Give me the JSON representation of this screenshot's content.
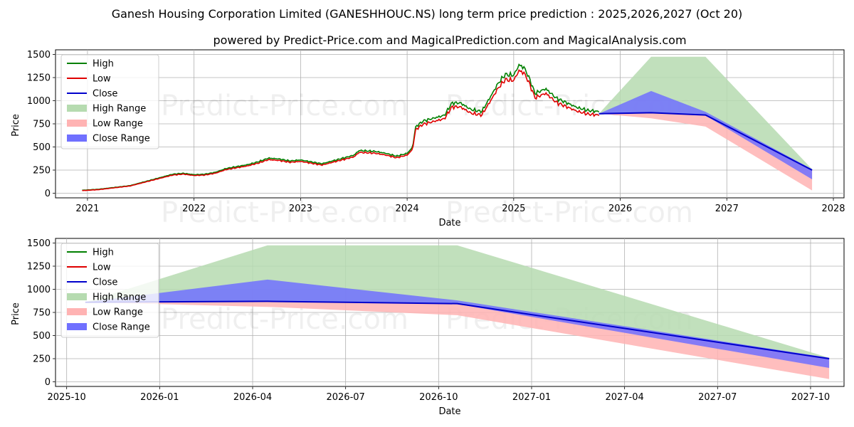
{
  "titles": {
    "main": "Ganesh Housing Corporation Limited (GANESHHOUC.NS) long term price prediction : 2025,2026,2027 (Oct 20)",
    "sub": "powered by Predict-Price.com and MagicalPrediction.com and MagicalAnalysis.com"
  },
  "watermark": "Predict-Price.com",
  "colors": {
    "high": "#008000",
    "low": "#e00000",
    "close": "#0000cc",
    "high_range": "#b6dbb0",
    "low_range": "#ffb3b3",
    "close_range": "#7070ff"
  },
  "legend": [
    "High",
    "Low",
    "Close",
    "High Range",
    "Low Range",
    "Close Range"
  ],
  "chart_data": [
    {
      "type": "line",
      "title": "",
      "xlabel": "Date",
      "ylabel": "Price",
      "xlim": [
        2020.7,
        2028.1
      ],
      "ylim": [
        -50,
        1550
      ],
      "x_ticks": [
        2021,
        2022,
        2023,
        2024,
        2025,
        2026,
        2027,
        2028
      ],
      "x_tick_labels": [
        "2021",
        "2022",
        "2023",
        "2024",
        "2025",
        "2026",
        "2027",
        "2028"
      ],
      "y_ticks": [
        0,
        250,
        500,
        750,
        1000,
        1250,
        1500
      ],
      "y_tick_labels": [
        "0",
        "250",
        "500",
        "750",
        "1000",
        "1250",
        "1500"
      ],
      "grid": true,
      "legend_position": "upper-left",
      "history": {
        "x": [
          2020.95,
          2021.1,
          2021.25,
          2021.4,
          2021.5,
          2021.6,
          2021.7,
          2021.8,
          2021.9,
          2022.0,
          2022.1,
          2022.2,
          2022.3,
          2022.4,
          2022.5,
          2022.6,
          2022.7,
          2022.8,
          2022.9,
          2023.0,
          2023.1,
          2023.2,
          2023.3,
          2023.4,
          2023.5,
          2023.55,
          2023.7,
          2023.8,
          2023.9,
          2024.0,
          2024.05,
          2024.08,
          2024.15,
          2024.25,
          2024.35,
          2024.42,
          2024.5,
          2024.6,
          2024.7,
          2024.8,
          2024.85,
          2024.92,
          2025.0,
          2025.05,
          2025.1,
          2025.15,
          2025.2,
          2025.3,
          2025.4,
          2025.5,
          2025.6,
          2025.7,
          2025.8
        ],
        "close": [
          30,
          40,
          60,
          80,
          110,
          140,
          170,
          200,
          210,
          195,
          200,
          220,
          260,
          280,
          300,
          330,
          370,
          360,
          340,
          350,
          330,
          310,
          340,
          370,
          400,
          450,
          440,
          420,
          390,
          420,
          480,
          700,
          760,
          790,
          820,
          950,
          950,
          880,
          860,
          1050,
          1150,
          1250,
          1240,
          1350,
          1320,
          1200,
          1050,
          1100,
          1000,
          950,
          900,
          870,
          860
        ]
      },
      "forecast": {
        "x": [
          2025.8,
          2026.29,
          2026.8,
          2027.8
        ],
        "close": [
          860,
          870,
          845,
          250
        ],
        "high_range": [
          [
            860,
            860
          ],
          [
            860,
            1475
          ],
          [
            840,
            1475
          ],
          [
            240,
            260
          ]
        ],
        "low_range": [
          [
            860,
            860
          ],
          [
            810,
            870
          ],
          [
            720,
            850
          ],
          [
            30,
            250
          ]
        ],
        "close_range": [
          [
            860,
            860
          ],
          [
            870,
            1105
          ],
          [
            840,
            880
          ],
          [
            150,
            260
          ]
        ]
      }
    },
    {
      "type": "line",
      "title": "",
      "xlabel": "Date",
      "ylabel": "Price",
      "xlim": [
        2025.72,
        2027.84
      ],
      "ylim": [
        -50,
        1550
      ],
      "x_ticks": [
        2025.75,
        2026.0,
        2026.25,
        2026.5,
        2026.75,
        2027.0,
        2027.25,
        2027.5,
        2027.75
      ],
      "x_tick_labels": [
        "2025-10",
        "2026-01",
        "2026-04",
        "2026-07",
        "2026-10",
        "2027-01",
        "2027-04",
        "2027-07",
        "2027-10"
      ],
      "y_ticks": [
        0,
        250,
        500,
        750,
        1000,
        1250,
        1500
      ],
      "y_tick_labels": [
        "0",
        "250",
        "500",
        "750",
        "1000",
        "1250",
        "1500"
      ],
      "grid": true,
      "legend_position": "upper-left"
    }
  ]
}
